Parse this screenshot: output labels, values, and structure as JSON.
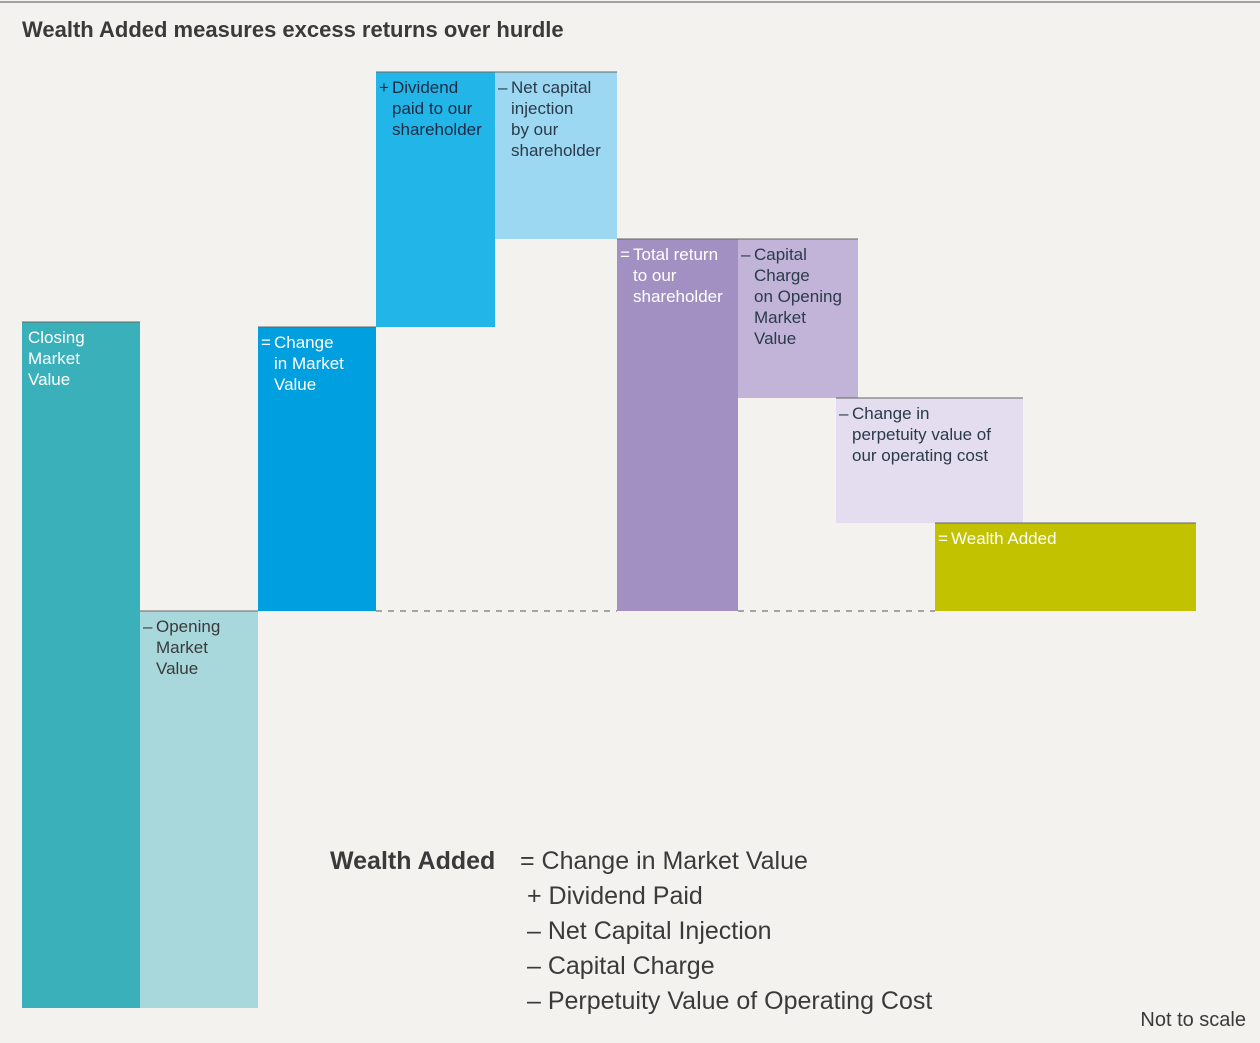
{
  "title": "Wealth Added measures excess returns over hurdle",
  "steps": [
    {
      "lines": [
        "Closing",
        "Market",
        "Value"
      ]
    },
    {
      "sign": "–",
      "lines": [
        "Opening",
        "Market",
        "Value"
      ]
    },
    {
      "sign": "=",
      "lines": [
        "Change",
        "in Market",
        "Value"
      ]
    },
    {
      "sign": "+",
      "lines": [
        "Dividend",
        "paid to our",
        "shareholder"
      ]
    },
    {
      "sign": "–",
      "lines": [
        "Net capital",
        "injection",
        "by our",
        "shareholder"
      ]
    },
    {
      "sign": "=",
      "lines": [
        "Total return",
        "to our",
        "shareholder"
      ]
    },
    {
      "sign": "–",
      "lines": [
        "Capital",
        "Charge",
        "on Opening",
        "Market",
        "Value"
      ]
    },
    {
      "sign": "–",
      "lines": [
        "Change in",
        "perpetuity value of",
        "our operating cost"
      ]
    },
    {
      "sign": "=",
      "lines": [
        "Wealth Added"
      ]
    }
  ],
  "formula": {
    "term": "Wealth Added",
    "lines": [
      "= Change in Market Value",
      "+ Dividend Paid",
      "– Net Capital Injection",
      "– Capital Charge",
      "– Perpetuity Value of Operating Cost"
    ]
  },
  "note": "Not to scale"
}
